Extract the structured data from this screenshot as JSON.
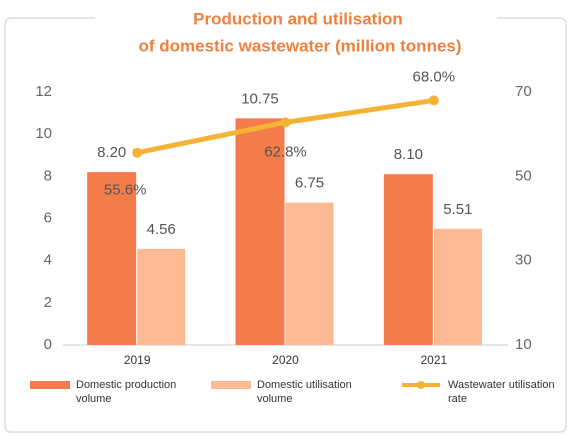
{
  "chart_data": {
    "type": "bar",
    "title": [
      "Production and utilisation",
      "of domestic wastewater (million tonnes)"
    ],
    "categories": [
      "2019",
      "2020",
      "2021"
    ],
    "series": [
      {
        "name": "Domestic production volume",
        "color": "#f47b4a",
        "values": [
          8.2,
          10.75,
          8.1
        ],
        "value_labels": [
          "8.20",
          "10.75",
          "8.10"
        ]
      },
      {
        "name": "Domestic utilisation volume",
        "color": "#fbb994",
        "values": [
          4.56,
          6.75,
          5.51
        ],
        "value_labels": [
          "4.56",
          "6.75",
          "5.51"
        ]
      },
      {
        "name": "Wastewater utilisation rate",
        "color": "#f5b335",
        "type": "line",
        "axis": "y2",
        "values": [
          55.6,
          62.8,
          68.0
        ],
        "value_labels": [
          "55.6%",
          "62.8%",
          "68.0%"
        ]
      }
    ],
    "ylim": [
      0,
      12
    ],
    "yticks": [
      0,
      2,
      4,
      6,
      8,
      10,
      12
    ],
    "y2lim": [
      10,
      70
    ],
    "y2ticks": [
      10,
      30,
      50,
      70
    ],
    "legend": "bottom"
  }
}
